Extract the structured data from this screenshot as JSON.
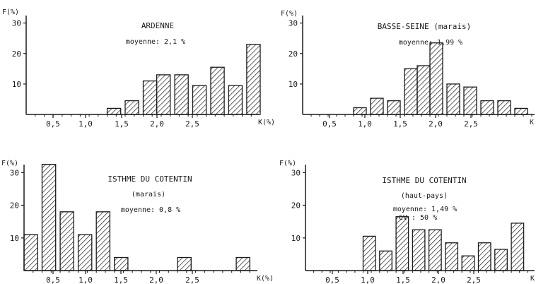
{
  "figure": {
    "stroke_color": "#1a1a1a",
    "background": "#ffffff"
  },
  "chart_data": [
    {
      "type": "bar",
      "title": "ARDENNE",
      "subtitle": "moyenne: 2,1 %",
      "ylabel": "F(%)",
      "xlabel": "K(%)",
      "ylim": [
        0,
        32
      ],
      "xlim": [
        0,
        2.6
      ],
      "y_ticks": [
        "10",
        "20",
        "30"
      ],
      "x_ticks": [
        "0,5",
        "1,0",
        "1,5",
        "2,0",
        "2,5"
      ],
      "bar_left": [
        0.9,
        1.1,
        1.3,
        1.45,
        1.65,
        1.85,
        2.05,
        2.25,
        2.45
      ],
      "bar_right": [
        1.05,
        1.25,
        1.45,
        1.6,
        1.8,
        2.0,
        2.2,
        2.4,
        2.6
      ],
      "values": [
        2,
        4.5,
        11,
        13,
        13,
        9.5,
        15.5,
        9.5,
        23
      ]
    },
    {
      "type": "bar",
      "title": "BASSE-SEINE (marais)",
      "subtitle": "moyenne: 1,99 %",
      "ylabel": "F(%)",
      "xlabel": "K",
      "ylim": [
        0,
        32
      ],
      "xlim": [
        0,
        2.75
      ],
      "y_ticks": [
        "10",
        "20",
        "30"
      ],
      "x_ticks": [
        "0,5",
        "1,0",
        "1,5",
        "2,0",
        "2,5"
      ],
      "bar_left": [
        0.6,
        0.8,
        1.0,
        1.2,
        1.35,
        1.5,
        1.7,
        1.9,
        2.1,
        2.3,
        2.5
      ],
      "bar_right": [
        0.75,
        0.95,
        1.15,
        1.35,
        1.5,
        1.65,
        1.85,
        2.05,
        2.25,
        2.45,
        2.65
      ],
      "values": [
        2.2,
        5.3,
        4.5,
        15,
        16,
        23.5,
        10,
        9,
        4.5,
        4.5,
        2
      ]
    },
    {
      "type": "bar",
      "title": "ISTHME DU COTENTIN",
      "subtitle": "(marais)",
      "subtitle2": "moyenne: 0,8 %",
      "ylabel": "F(%)",
      "xlabel": "K(%)",
      "ylim": [
        0,
        32
      ],
      "xlim": [
        0,
        2.6
      ],
      "y_ticks": [
        "10",
        "20",
        "30"
      ],
      "x_ticks": [
        "0,5",
        "1,0",
        "1,5",
        "2,0",
        "2,5"
      ],
      "bar_left": [
        0.0,
        0.2,
        0.4,
        0.6,
        0.8,
        1.0,
        1.7,
        2.35
      ],
      "bar_right": [
        0.15,
        0.35,
        0.55,
        0.75,
        0.95,
        1.15,
        1.85,
        2.5
      ],
      "values": [
        11,
        32.5,
        18,
        11,
        18,
        4,
        4,
        4
      ]
    },
    {
      "type": "bar",
      "title": "ISTHME DU COTENTIN",
      "subtitle": "(haut-pays)",
      "subtitle2": "moyenne: 1,49 %",
      "subtitle3": "CV : 50 %",
      "ylabel": "F(%)",
      "xlabel": "K",
      "ylim": [
        0,
        32
      ],
      "xlim": [
        0,
        2.8
      ],
      "y_ticks": [
        "10",
        "20",
        "30"
      ],
      "x_ticks": [
        "0,5",
        "1,0",
        "1,5",
        "2,0",
        "2,5"
      ],
      "bar_left": [
        0.7,
        0.9,
        1.1,
        1.3,
        1.5,
        1.7,
        1.9,
        2.1,
        2.3,
        2.5
      ],
      "bar_right": [
        0.85,
        1.05,
        1.25,
        1.45,
        1.65,
        1.85,
        2.05,
        2.25,
        2.45,
        2.65
      ],
      "values": [
        10.5,
        6,
        16.5,
        12.5,
        12.5,
        8.5,
        4.5,
        8.5,
        6.5,
        14.5
      ]
    }
  ]
}
